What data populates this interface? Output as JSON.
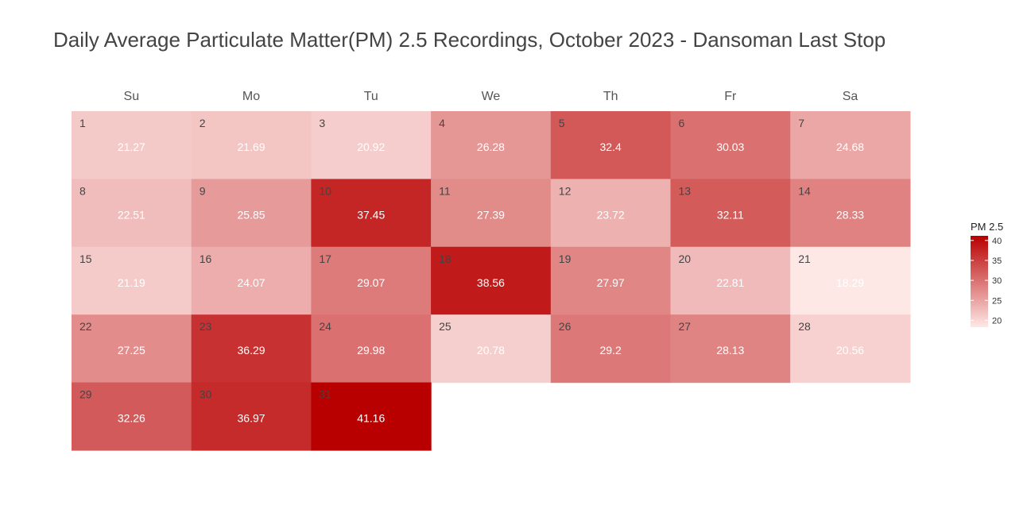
{
  "chart_data": {
    "type": "heatmap",
    "title": "Daily Average Particulate Matter(PM) 2.5 Recordings, October 2023 - Dansoman Last Stop",
    "weekdays": [
      "Su",
      "Mo",
      "Tu",
      "We",
      "Th",
      "Fr",
      "Sa"
    ],
    "month_start_weekday": 0,
    "days": [
      {
        "day": "1",
        "value": 21.27,
        "label": "21.27"
      },
      {
        "day": "2",
        "value": 21.69,
        "label": "21.69"
      },
      {
        "day": "3",
        "value": 20.92,
        "label": "20.92"
      },
      {
        "day": "4",
        "value": 26.28,
        "label": "26.28"
      },
      {
        "day": "5",
        "value": 32.4,
        "label": "32.4"
      },
      {
        "day": "6",
        "value": 30.03,
        "label": "30.03"
      },
      {
        "day": "7",
        "value": 24.68,
        "label": "24.68"
      },
      {
        "day": "8",
        "value": 22.51,
        "label": "22.51"
      },
      {
        "day": "9",
        "value": 25.85,
        "label": "25.85"
      },
      {
        "day": "10",
        "value": 37.45,
        "label": "37.45"
      },
      {
        "day": "11",
        "value": 27.39,
        "label": "27.39"
      },
      {
        "day": "12",
        "value": 23.72,
        "label": "23.72"
      },
      {
        "day": "13",
        "value": 32.11,
        "label": "32.11"
      },
      {
        "day": "14",
        "value": 28.33,
        "label": "28.33"
      },
      {
        "day": "15",
        "value": 21.19,
        "label": "21.19"
      },
      {
        "day": "16",
        "value": 24.07,
        "label": "24.07"
      },
      {
        "day": "17",
        "value": 29.07,
        "label": "29.07"
      },
      {
        "day": "18",
        "value": 38.56,
        "label": "38.56"
      },
      {
        "day": "19",
        "value": 27.97,
        "label": "27.97"
      },
      {
        "day": "20",
        "value": 22.81,
        "label": "22.81"
      },
      {
        "day": "21",
        "value": 18.29,
        "label": "18.29"
      },
      {
        "day": "22",
        "value": 27.25,
        "label": "27.25"
      },
      {
        "day": "23",
        "value": 36.29,
        "label": "36.29"
      },
      {
        "day": "24",
        "value": 29.98,
        "label": "29.98"
      },
      {
        "day": "25",
        "value": 20.78,
        "label": "20.78"
      },
      {
        "day": "26",
        "value": 29.2,
        "label": "29.2"
      },
      {
        "day": "27",
        "value": 28.13,
        "label": "28.13"
      },
      {
        "day": "28",
        "value": 20.56,
        "label": "20.56"
      },
      {
        "day": "29",
        "value": 32.26,
        "label": "32.26"
      },
      {
        "day": "30",
        "value": 36.97,
        "label": "36.97"
      },
      {
        "day": "31",
        "value": 41.16,
        "label": "41.16"
      }
    ],
    "legend": {
      "title": "PM 2.5",
      "placement": "right",
      "ticks": [
        "20",
        "25",
        "30",
        "35",
        "40"
      ],
      "range": [
        18.29,
        41.16
      ],
      "color_low": "#fde8e6",
      "color_high": "#b80000"
    }
  }
}
